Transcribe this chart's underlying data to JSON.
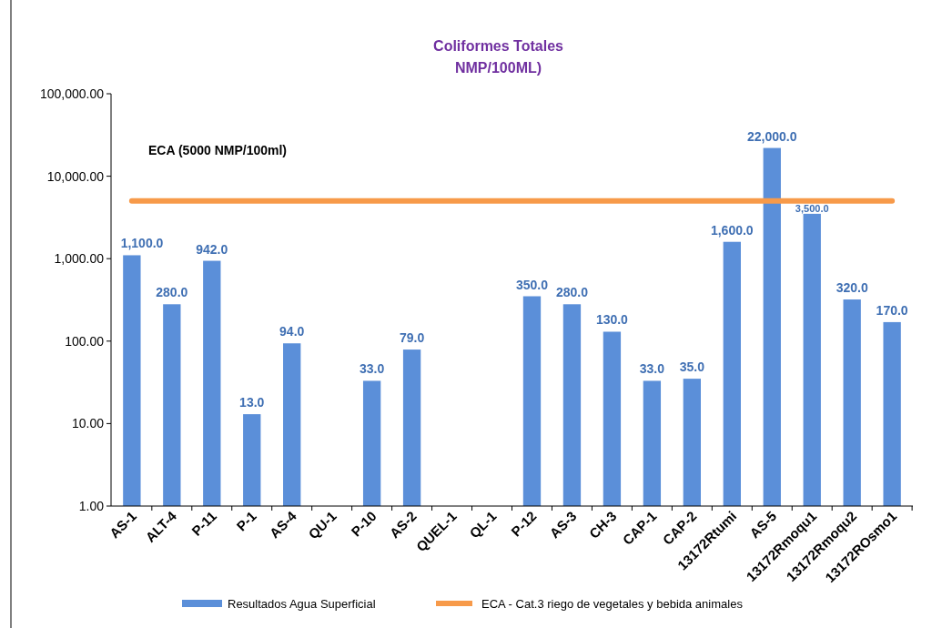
{
  "chart_data": {
    "type": "bar",
    "title": "Coliformes Totales",
    "subtitle": "NMP/100ML)",
    "categories": [
      "AS-1",
      "ALT-4",
      "P-11",
      "P-1",
      "AS-4",
      "QU-1",
      "P-10",
      "AS-2",
      "QUEL-1",
      "QL-1",
      "P-12",
      "AS-3",
      "CH-3",
      "CAP-1",
      "CAP-2",
      "13172Rtumi",
      "AS-5",
      "13172Rmoqu1",
      "13172Rmoqu2",
      "13172ROsmo1"
    ],
    "series": [
      {
        "name": "Resultados Agua Superficial",
        "color": "#5b8fd9",
        "values": [
          1100,
          280,
          942,
          13,
          94,
          null,
          33,
          79,
          null,
          null,
          350,
          280,
          130,
          33,
          35,
          1600,
          22000,
          3500,
          320,
          170
        ],
        "value_labels": [
          "1,100.0",
          "280.0",
          "942.0",
          "13.0",
          "94.0",
          null,
          "33.0",
          "79.0",
          null,
          null,
          "350.0",
          "280.0",
          "130.0",
          "33.0",
          "35.0",
          "1,600.0",
          "22,000.0",
          "3,500.0",
          "320.0",
          "170.0"
        ]
      },
      {
        "type": "line",
        "name": "ECA - Cat.3 riego de vegetales y bebida animales",
        "color": "#f79a4a",
        "values": [
          5000,
          5000,
          5000,
          5000,
          5000,
          5000,
          5000,
          5000,
          5000,
          5000,
          5000,
          5000,
          5000,
          5000,
          5000,
          5000,
          5000,
          5000,
          5000,
          5000
        ]
      }
    ],
    "log": true,
    "ylim": [
      1,
      100000
    ],
    "yticks": [
      {
        "value": 1,
        "label": "1.00"
      },
      {
        "value": 10,
        "label": "10.00"
      },
      {
        "value": 100,
        "label": "100.00"
      },
      {
        "value": 1000,
        "label": "1,000.00"
      },
      {
        "value": 10000,
        "label": "10,000.00"
      },
      {
        "value": 100000,
        "label": "100,000.00"
      }
    ],
    "annotations": [
      "ECA  (5000 NMP/100ml)"
    ],
    "legend": "bottom"
  }
}
